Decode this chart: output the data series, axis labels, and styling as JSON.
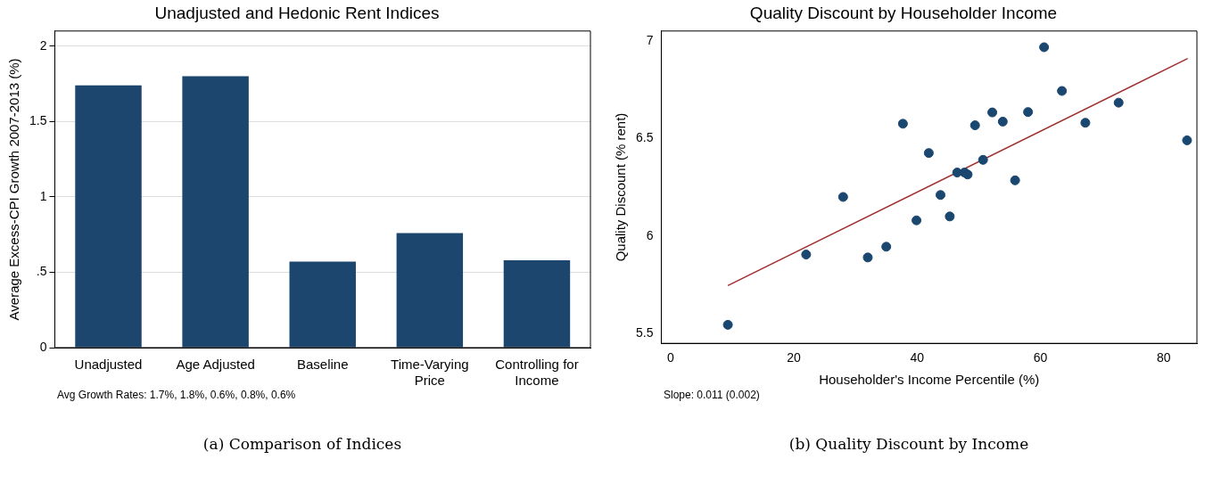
{
  "chart_data": [
    {
      "type": "bar",
      "title": "Unadjusted and Hedonic Rent Indices",
      "ylabel": "Average Excess-CPI Growth 2007-2013 (%)",
      "categories": [
        "Unadjusted",
        "Age Adjusted",
        "Baseline",
        "Time-Varying Price",
        "Controlling for Income"
      ],
      "values": [
        1.74,
        1.8,
        0.57,
        0.76,
        0.58
      ],
      "color": "#1c466e",
      "ylim": [
        0,
        2.1
      ],
      "yticks": [
        0,
        {
          "value": 0.5,
          "label": ".5"
        },
        1,
        1.5,
        2
      ],
      "grid": "y",
      "legend": false,
      "annotations": [
        "Avg Growth Rates:  1.7%,  1.8%,  0.6%,  0.8%,  0.6%",
        "(a) Comparison of Indices"
      ]
    },
    {
      "type": "scatter",
      "title": "Quality Discount by Householder Income",
      "xlabel": "Householder's Income Percentile (%)",
      "ylabel": "Quality Discount (% rent)",
      "series": [
        {
          "type": "scatter",
          "color": "#1a4770",
          "marker": "circle",
          "x": [
            9.3,
            22.0,
            28.0,
            32.0,
            35.0,
            37.7,
            39.9,
            41.9,
            43.8,
            45.3,
            46.5,
            47.7,
            48.2,
            49.4,
            50.7,
            52.2,
            53.9,
            55.9,
            58.0,
            60.6,
            63.5,
            67.3,
            72.7,
            83.8
          ],
          "values": [
            5.545,
            5.905,
            6.2,
            5.89,
            5.945,
            6.575,
            6.08,
            6.425,
            6.21,
            6.1,
            6.325,
            6.325,
            6.315,
            6.567,
            6.39,
            6.633,
            6.586,
            6.285,
            6.635,
            6.967,
            6.743,
            6.58,
            6.683,
            6.49
          ]
        },
        {
          "type": "line",
          "color": "#a03030",
          "marker": "none",
          "x": [
            9.3,
            83.9
          ],
          "values": [
            5.746,
            6.909
          ]
        }
      ],
      "xlim": [
        -1.5,
        85.4
      ],
      "xticks": [
        0,
        20,
        40,
        60,
        80
      ],
      "ylim": [
        5.45,
        7.05
      ],
      "yticks": [
        5.5,
        6,
        6.5,
        7
      ],
      "grid": false,
      "legend": false,
      "line_style": "solid",
      "annotations": [
        "Slope: 0.011 (0.002)",
        "(b) Quality Discount by Income"
      ]
    }
  ]
}
